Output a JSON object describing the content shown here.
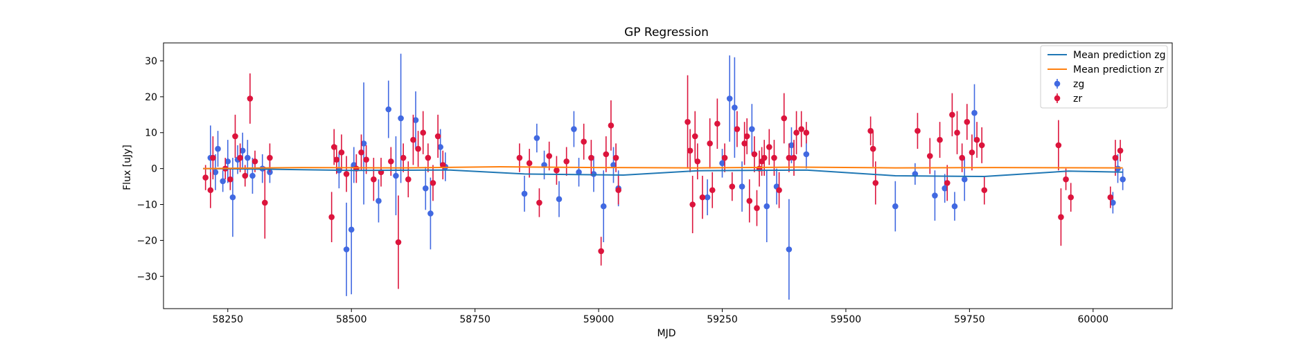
{
  "chart_data": {
    "type": "scatter",
    "title": "GP Regression",
    "xlabel": "MJD",
    "ylabel": "Flux [uJy]",
    "xlim": [
      58120,
      60160
    ],
    "ylim": [
      -39,
      35
    ],
    "xticks": [
      58250,
      58500,
      58750,
      59000,
      59250,
      59500,
      59750,
      60000
    ],
    "yticks": [
      -30,
      -20,
      -10,
      0,
      10,
      20,
      30
    ],
    "grid": false,
    "legend_position": "top-right",
    "lines": [
      {
        "name": "Mean prediction zg",
        "color": "#1f77b4",
        "x": [
          58200,
          58340,
          58500,
          58700,
          58850,
          59050,
          59200,
          59420,
          59600,
          59780,
          59950,
          60060
        ],
        "y": [
          0,
          -0.2,
          -0.5,
          -0.4,
          -1.5,
          -1.8,
          -0.6,
          -0.4,
          -2.0,
          -2.2,
          -0.7,
          -1.0
        ]
      },
      {
        "name": "Mean prediction zr",
        "color": "#ff7f0e",
        "x": [
          58200,
          58400,
          58600,
          58800,
          59000,
          59200,
          59400,
          59600,
          59800,
          60060
        ],
        "y": [
          0,
          0.3,
          0.2,
          0.5,
          0.3,
          0.2,
          0.4,
          0.2,
          0.3,
          0.2
        ]
      }
    ],
    "series": [
      {
        "name": "zg",
        "color": "#4169e1",
        "x": [
          58215,
          58225,
          58230,
          58240,
          58250,
          58260,
          58270,
          58280,
          58290,
          58300,
          58320,
          58335,
          58475,
          58490,
          58500,
          58505,
          58525,
          58555,
          58575,
          58590,
          58600,
          58630,
          58650,
          58660,
          58680,
          58690,
          58850,
          58875,
          58890,
          58920,
          58950,
          58960,
          58990,
          59010,
          59030,
          59040,
          59220,
          59250,
          59265,
          59275,
          59290,
          59310,
          59340,
          59360,
          59385,
          59390,
          59420,
          59600,
          59640,
          59680,
          59700,
          59720,
          59740,
          59760,
          60040,
          60050,
          60060
        ],
        "y": [
          3,
          -1,
          5.5,
          -3.5,
          2,
          -8,
          2.5,
          5,
          3,
          -2,
          0,
          -1,
          -0.5,
          -22.5,
          -17,
          1,
          7,
          -9,
          16.5,
          -2,
          14,
          13.5,
          -5.5,
          -12.5,
          6,
          0.5,
          -7,
          8.5,
          1,
          -8.5,
          11,
          -1,
          -1.5,
          -10.5,
          1,
          -5.5,
          -8,
          1.5,
          19.5,
          17,
          -5,
          11,
          -10.5,
          -5,
          -22.5,
          6.5,
          4,
          -10.5,
          -1.5,
          -7.5,
          -5.5,
          -10.5,
          -3,
          15.5,
          -9.5,
          0,
          -3
        ],
        "err": [
          9,
          5,
          5,
          3,
          6,
          11,
          4,
          5,
          5,
          5,
          4,
          3,
          5,
          13,
          18,
          5,
          17,
          6,
          8,
          11,
          18,
          8,
          6,
          10,
          5,
          4,
          5,
          4,
          4,
          5,
          5,
          4,
          5,
          10,
          5,
          5,
          5,
          4,
          12,
          14,
          7,
          7,
          10,
          5,
          14,
          5,
          4,
          7,
          3,
          7,
          4,
          4,
          6,
          8,
          3,
          4,
          3
        ]
      },
      {
        "name": "zr",
        "color": "#dc143c",
        "x": [
          58205,
          58215,
          58220,
          58245,
          58255,
          58265,
          58275,
          58285,
          58295,
          58305,
          58325,
          58335,
          58460,
          58465,
          58470,
          58480,
          58490,
          58510,
          58520,
          58530,
          58545,
          58560,
          58580,
          58595,
          58605,
          58615,
          58625,
          58635,
          58645,
          58655,
          58665,
          58675,
          58685,
          58840,
          58860,
          58880,
          58900,
          58915,
          58935,
          58970,
          58985,
          59005,
          59015,
          59025,
          59035,
          59040,
          59180,
          59185,
          59190,
          59195,
          59200,
          59210,
          59225,
          59230,
          59240,
          59255,
          59270,
          59280,
          59295,
          59300,
          59305,
          59315,
          59320,
          59325,
          59330,
          59335,
          59345,
          59355,
          59365,
          59375,
          59385,
          59395,
          59400,
          59410,
          59420,
          59550,
          59555,
          59560,
          59645,
          59670,
          59690,
          59705,
          59715,
          59725,
          59735,
          59745,
          59755,
          59765,
          59775,
          59780,
          59930,
          59935,
          59945,
          59955,
          60035,
          60045,
          60055
        ],
        "y": [
          -2.5,
          -6,
          3,
          0,
          -3,
          9,
          3,
          -2,
          19.5,
          2,
          -9.5,
          3,
          -13.5,
          6,
          2.5,
          4.5,
          -1.5,
          0,
          4.5,
          2.5,
          -3,
          -1,
          2,
          -20.5,
          3,
          -3,
          8,
          5.5,
          10,
          3,
          -4,
          9,
          1,
          3,
          1.5,
          -9.5,
          3.5,
          -0.5,
          2,
          7.5,
          3,
          -23,
          4,
          12,
          3,
          -6,
          13,
          5,
          -10,
          9,
          2,
          -8,
          7,
          -6,
          12.5,
          3,
          -5,
          11,
          7,
          9,
          -9,
          4,
          -11,
          0,
          2,
          3,
          6,
          3,
          -6,
          14,
          3,
          3,
          10,
          11,
          10,
          10.5,
          5.5,
          -4,
          10.5,
          3.5,
          8,
          -4,
          15,
          10,
          3,
          13,
          4.5,
          8,
          6.5,
          -6,
          6.5,
          -13.5,
          -3,
          -8,
          -8,
          3,
          5
        ],
        "err": [
          3.5,
          5,
          6,
          3,
          3,
          6,
          4,
          3,
          7,
          3,
          10,
          4,
          7,
          5,
          4,
          5,
          5,
          4,
          5,
          4,
          6,
          4,
          4,
          13,
          4,
          5,
          7,
          5,
          6,
          4,
          5,
          6,
          4,
          4,
          4,
          4,
          4,
          4,
          4,
          5,
          5,
          4,
          5,
          7,
          4,
          4,
          13,
          6,
          8,
          7,
          5,
          6,
          7,
          5,
          7,
          4,
          4,
          5,
          6,
          5,
          6,
          5,
          5,
          5,
          4,
          5,
          5,
          5,
          5,
          7,
          4,
          5,
          6,
          5,
          3,
          4,
          5,
          6,
          5,
          5,
          5,
          5,
          6,
          6,
          4,
          5,
          5,
          5,
          5,
          4,
          7,
          8,
          3,
          4,
          3,
          5,
          3
        ]
      }
    ]
  }
}
